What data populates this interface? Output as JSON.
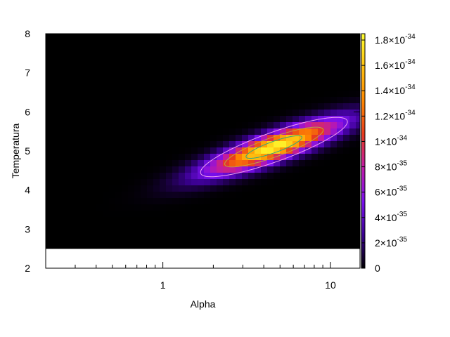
{
  "chart_data": {
    "type": "heatmap",
    "title": "",
    "xlabel": "Alpha",
    "ylabel": "Temperatura",
    "xscale": "log",
    "xlim": [
      0.2,
      15
    ],
    "ylim": [
      2,
      8
    ],
    "data_ylim": [
      2.5,
      8
    ],
    "x_ticks": [
      {
        "value": 1,
        "label": "1"
      },
      {
        "value": 10,
        "label": "10"
      }
    ],
    "y_ticks": [
      {
        "value": 2,
        "label": "2"
      },
      {
        "value": 3,
        "label": "3"
      },
      {
        "value": 4,
        "label": "4"
      },
      {
        "value": 5,
        "label": "5"
      },
      {
        "value": 6,
        "label": "6"
      },
      {
        "value": 7,
        "label": "7"
      },
      {
        "value": 8,
        "label": "8"
      }
    ],
    "colorbar": {
      "min": 0,
      "max": 1.85e-34,
      "palette": [
        "#000000",
        "#3a0090",
        "#7a10ee",
        "#c01aa8",
        "#e83a1e",
        "#ff8800",
        "#ffc010",
        "#ffff30"
      ],
      "ticks": [
        {
          "value": 0,
          "mantissa": "0",
          "exponent": ""
        },
        {
          "value": 2e-35,
          "mantissa": "2×10",
          "exponent": "-35"
        },
        {
          "value": 4e-35,
          "mantissa": "4×10",
          "exponent": "-35"
        },
        {
          "value": 6e-35,
          "mantissa": "6×10",
          "exponent": "-35"
        },
        {
          "value": 8e-35,
          "mantissa": "8×10",
          "exponent": "-35"
        },
        {
          "value": 1e-34,
          "mantissa": "1×10",
          "exponent": "-34"
        },
        {
          "value": 1.2e-34,
          "mantissa": "1.2×10",
          "exponent": "-34"
        },
        {
          "value": 1.4e-34,
          "mantissa": "1.4×10",
          "exponent": "-34"
        },
        {
          "value": 1.6e-34,
          "mantissa": "1.6×10",
          "exponent": "-34"
        },
        {
          "value": 1.8e-34,
          "mantissa": "1.8×10",
          "exponent": "-34"
        }
      ]
    },
    "peak": {
      "alpha": 4.6,
      "temperatura": 5.1,
      "value": 1.82e-34
    },
    "contours": [
      {
        "level": 1.5e-34,
        "color": "#30a880"
      },
      {
        "level": 1e-34,
        "color": "#c0a040"
      },
      {
        "level": 4.8e-35,
        "color": "#f0a0f0"
      }
    ],
    "grid": false,
    "legend": "none"
  }
}
